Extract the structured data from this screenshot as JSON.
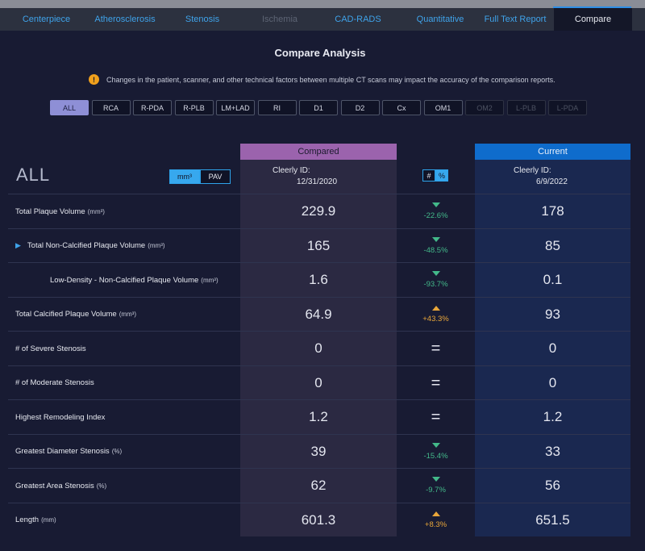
{
  "tabs": [
    {
      "label": "Centerpiece",
      "state": "link"
    },
    {
      "label": "Atherosclerosis",
      "state": "link"
    },
    {
      "label": "Stenosis",
      "state": "link"
    },
    {
      "label": "Ischemia",
      "state": "disabled"
    },
    {
      "label": "CAD-RADS",
      "state": "link"
    },
    {
      "label": "Quantitative",
      "state": "link"
    },
    {
      "label": "Full Text Report",
      "state": "link"
    },
    {
      "label": "Compare",
      "state": "active"
    }
  ],
  "page_title": "Compare Analysis",
  "warning": {
    "icon": "!",
    "text": "Changes in the patient, scanner, and other technical factors between multiple CT scans may impact the accuracy of the comparison reports."
  },
  "filters": [
    {
      "label": "ALL",
      "state": "active"
    },
    {
      "label": "RCA",
      "state": "enabled"
    },
    {
      "label": "R-PDA",
      "state": "enabled"
    },
    {
      "label": "R-PLB",
      "state": "enabled"
    },
    {
      "label": "LM+LAD",
      "state": "enabled"
    },
    {
      "label": "RI",
      "state": "enabled"
    },
    {
      "label": "D1",
      "state": "enabled"
    },
    {
      "label": "D2",
      "state": "enabled"
    },
    {
      "label": "Cx",
      "state": "enabled"
    },
    {
      "label": "OM1",
      "state": "enabled"
    },
    {
      "label": "OM2",
      "state": "disabled"
    },
    {
      "label": "L-PLB",
      "state": "disabled"
    },
    {
      "label": "L-PDA",
      "state": "disabled"
    }
  ],
  "table": {
    "section_title": "ALL",
    "unit_toggle": {
      "mm3": "mm³",
      "pav": "PAV"
    },
    "mode_toggle": {
      "count": "#",
      "percent": "%"
    },
    "compared": {
      "header": "Compared",
      "id_label": "Cleerly ID:",
      "date": "12/31/2020"
    },
    "current": {
      "header": "Current",
      "id_label": "Cleerly ID:",
      "date": "6/9/2022"
    },
    "rows": [
      {
        "label": "Total Plaque Volume",
        "unit": "(mm³)",
        "compared": "229.9",
        "current": "178",
        "change": "-22.6%",
        "direction": "down"
      },
      {
        "label": "Total Non-Calcified Plaque Volume",
        "unit": "(mm³)",
        "compared": "165",
        "current": "85",
        "change": "-48.5%",
        "direction": "down",
        "expandable": true,
        "caret": "▶"
      },
      {
        "label": "Low-Density - Non-Calcified Plaque Volume",
        "unit": "(mm³)",
        "compared": "1.6",
        "current": "0.1",
        "change": "-93.7%",
        "direction": "down",
        "indent": true
      },
      {
        "label": "Total Calcified Plaque Volume",
        "unit": "(mm³)",
        "compared": "64.9",
        "current": "93",
        "change": "+43.3%",
        "direction": "up"
      },
      {
        "label": "# of Severe Stenosis",
        "unit": "",
        "compared": "0",
        "current": "0",
        "change": "=",
        "direction": "equal"
      },
      {
        "label": "# of Moderate Stenosis",
        "unit": "",
        "compared": "0",
        "current": "0",
        "change": "=",
        "direction": "equal"
      },
      {
        "label": "Highest Remodeling Index",
        "unit": "",
        "compared": "1.2",
        "current": "1.2",
        "change": "=",
        "direction": "equal"
      },
      {
        "label": "Greatest Diameter Stenosis",
        "unit": "(%)",
        "compared": "39",
        "current": "33",
        "change": "-15.4%",
        "direction": "down"
      },
      {
        "label": "Greatest Area Stenosis",
        "unit": "(%)",
        "compared": "62",
        "current": "56",
        "change": "-9.7%",
        "direction": "down"
      },
      {
        "label": "Length",
        "unit": "(mm)",
        "compared": "601.3",
        "current": "651.5",
        "change": "+8.3%",
        "direction": "up"
      }
    ]
  }
}
